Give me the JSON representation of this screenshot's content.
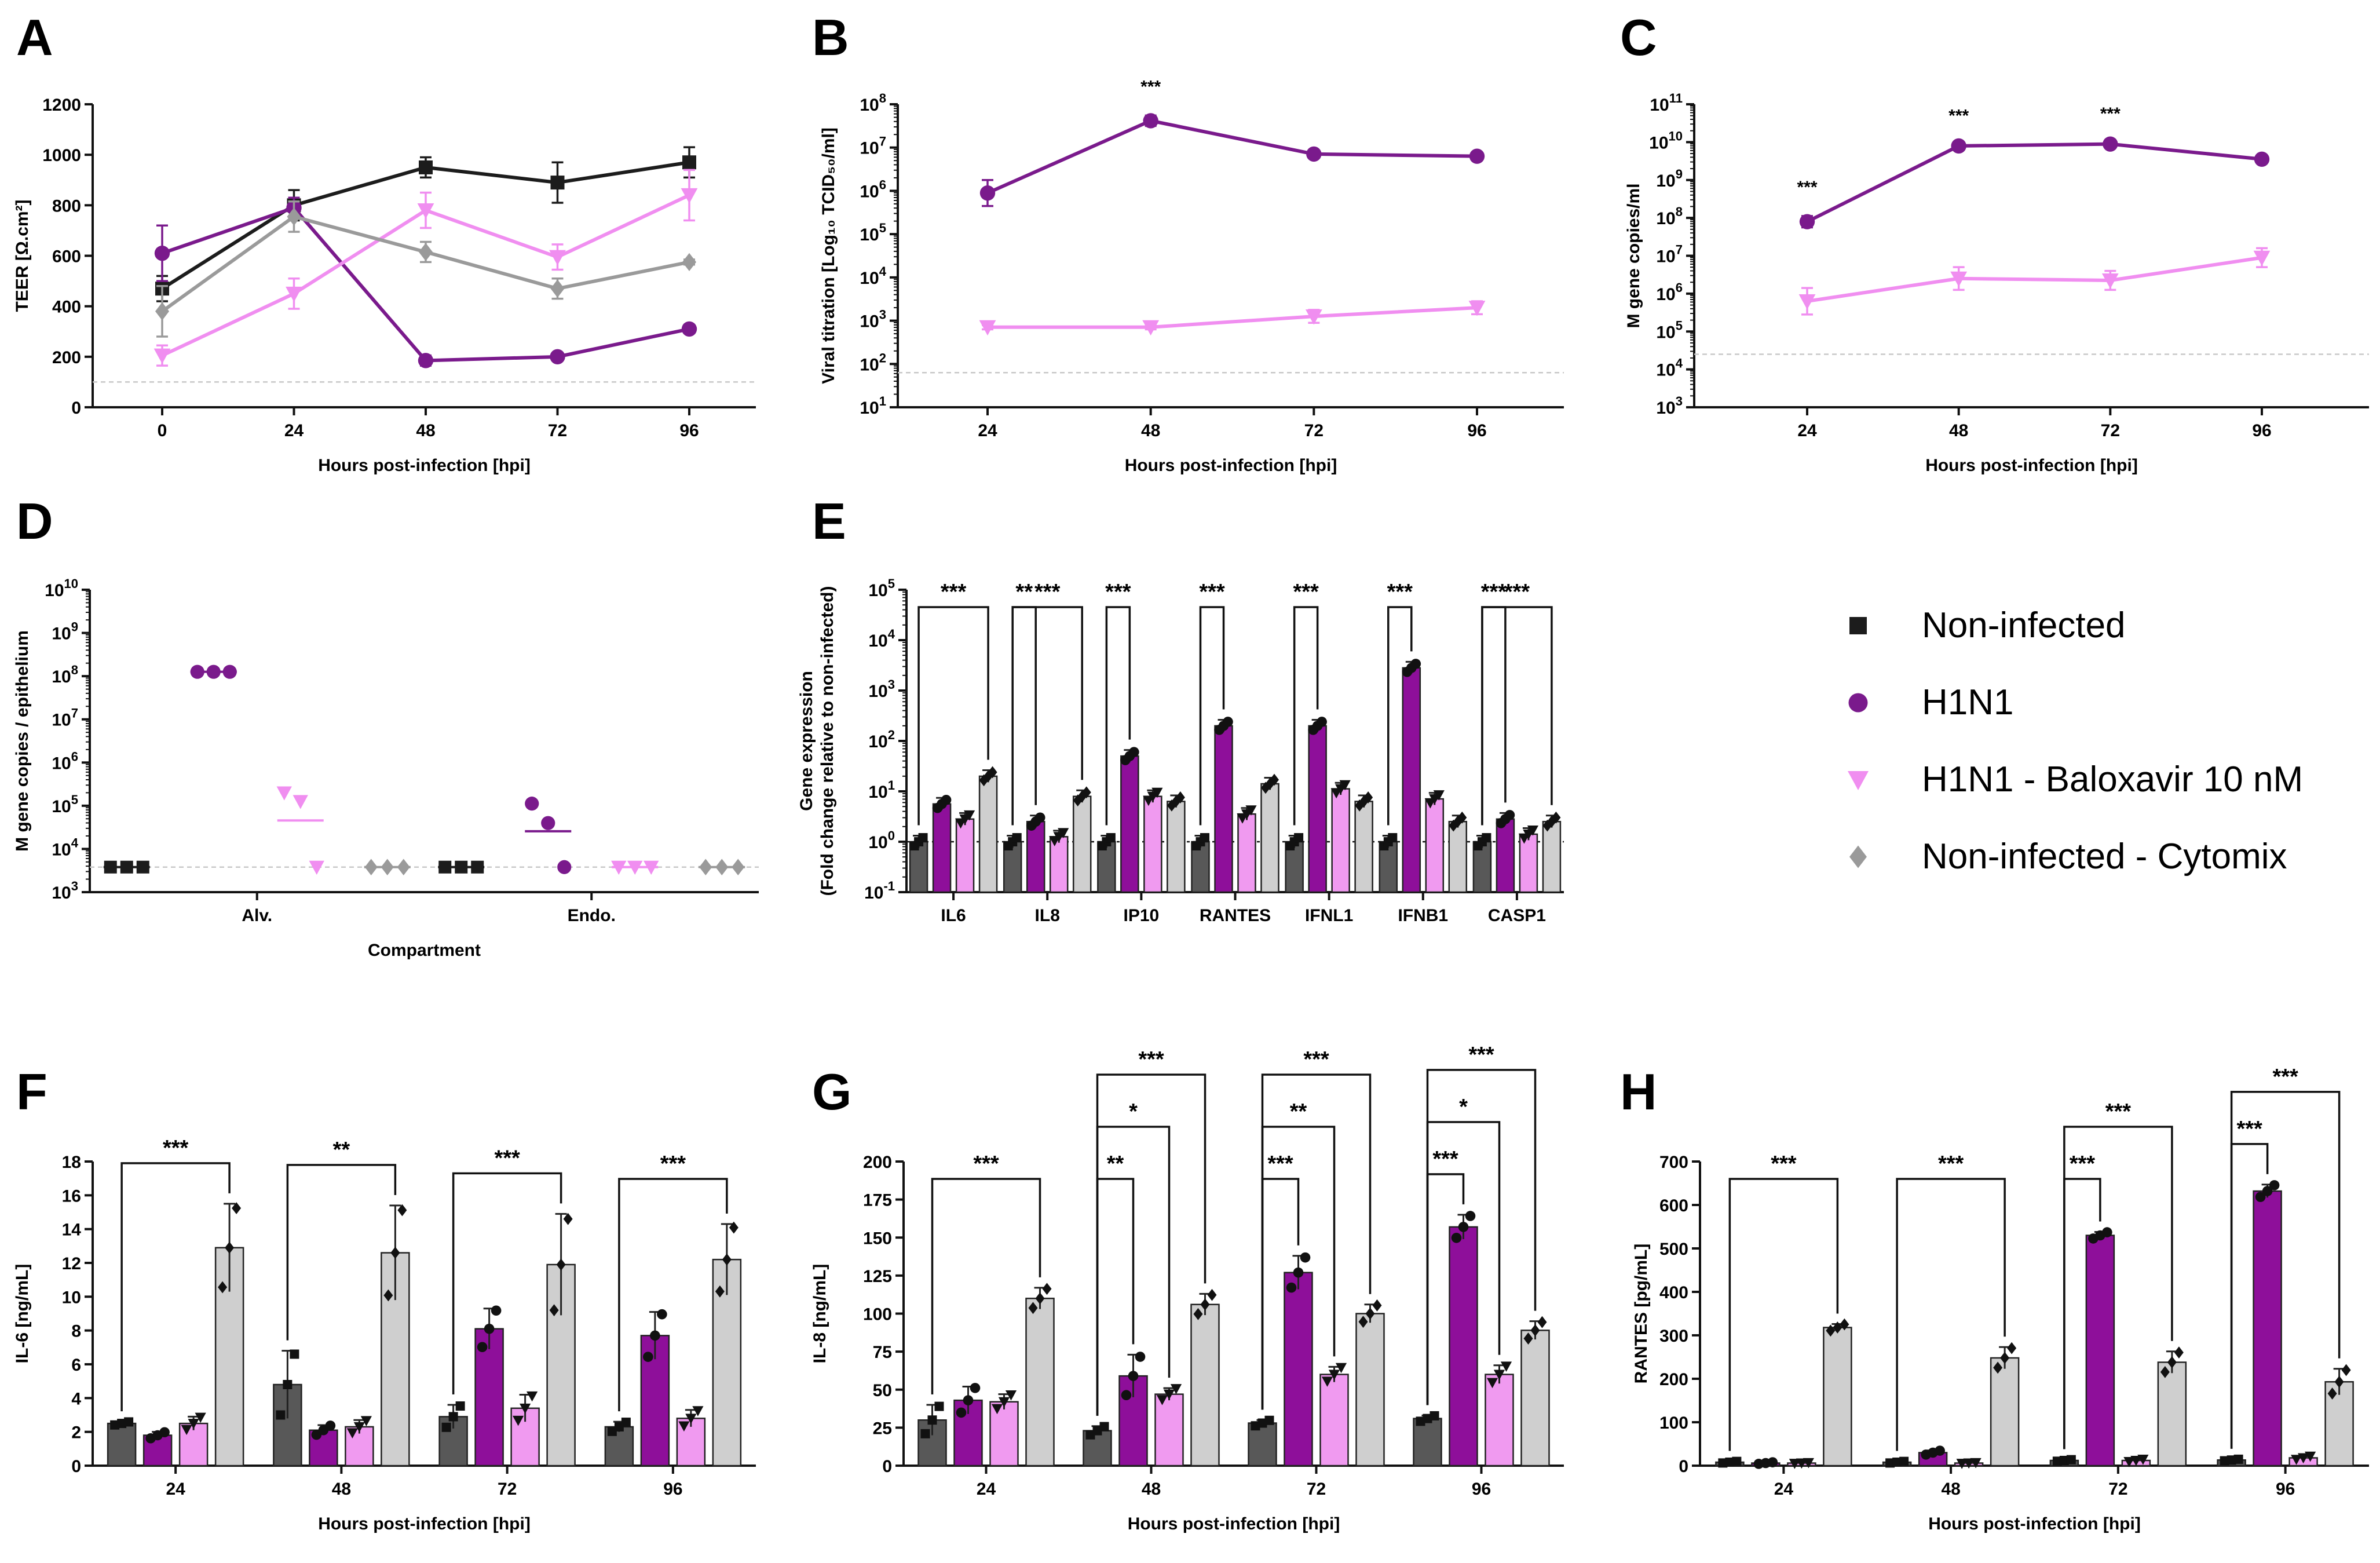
{
  "colors": {
    "noninf": "#1c1c1c",
    "h1n1": "#7a1a8c",
    "balox": "#f08ef0",
    "cytomix": "#9a9a9a",
    "bar_noninf": "#585858",
    "bar_h1n1": "#8e0f9a",
    "bar_balox": "#f09af0",
    "bar_cytomix": "#cfcfcf"
  },
  "legend": {
    "items": [
      {
        "label": "Non-infected",
        "marker": "square",
        "color": "#1c1c1c"
      },
      {
        "label": "H1N1",
        "marker": "circle",
        "color": "#7a1a8c"
      },
      {
        "label": "H1N1 - Baloxavir 10 nM",
        "marker": "triangle-down",
        "color": "#f08ef0"
      },
      {
        "label": "Non-infected - Cytomix",
        "marker": "diamond",
        "color": "#9a9a9a"
      }
    ]
  },
  "chart_data": [
    {
      "panel": "A",
      "type": "line",
      "x": [
        0,
        24,
        48,
        72,
        96
      ],
      "xticks": [
        "0",
        "24",
        "48",
        "72",
        "96"
      ],
      "xlabel": "Hours post-infection [hpi]",
      "ylabel": "TEER [Ω.cm²]",
      "ylim": [
        0,
        1200
      ],
      "yticks": [
        "0",
        "200",
        "400",
        "600",
        "800",
        "1000",
        "1200"
      ],
      "threshold": 100,
      "series": [
        {
          "name": "Non-infected",
          "values": [
            470,
            800,
            950,
            890,
            970
          ],
          "err": [
            50,
            60,
            40,
            80,
            60
          ]
        },
        {
          "name": "H1N1",
          "values": [
            610,
            790,
            185,
            200,
            310
          ],
          "err": [
            110,
            40,
            20,
            15,
            15
          ]
        },
        {
          "name": "H1N1 - Baloxavir 10 nM",
          "values": [
            205,
            450,
            780,
            595,
            840
          ],
          "err": [
            40,
            60,
            70,
            50,
            100
          ]
        },
        {
          "name": "Non-infected - Cytomix",
          "values": [
            380,
            755,
            615,
            470,
            575
          ],
          "err": [
            100,
            60,
            40,
            40,
            10
          ]
        }
      ]
    },
    {
      "panel": "B",
      "type": "line",
      "log": true,
      "x": [
        24,
        48,
        72,
        96
      ],
      "xticks": [
        "24",
        "48",
        "72",
        "96"
      ],
      "xlabel": "Hours post-infection [hpi]",
      "ylabel": "Viral titration [Log₁₀ TCID₅₀/ml]",
      "ylim_exp": [
        1,
        8
      ],
      "ytick_base": "10",
      "yticks_exp": [
        "1",
        "2",
        "3",
        "4",
        "5",
        "6",
        "7",
        "8"
      ],
      "threshold_exp": 1.8,
      "annotations": [
        {
          "x": 48,
          "text": "***"
        }
      ],
      "series": [
        {
          "name": "H1N1",
          "values_exp": [
            5.95,
            7.62,
            6.85,
            6.8
          ],
          "err": [
            0.3,
            0.12,
            0.06,
            0.06
          ]
        },
        {
          "name": "H1N1 - Baloxavir 10 nM",
          "values_exp": [
            2.85,
            2.85,
            3.1,
            3.3
          ],
          "err": [
            0.05,
            0.05,
            0.15,
            0.15
          ]
        }
      ]
    },
    {
      "panel": "C",
      "type": "line",
      "log": true,
      "x": [
        24,
        48,
        72,
        96
      ],
      "xticks": [
        "24",
        "48",
        "72",
        "96"
      ],
      "xlabel": "Hours post-infection [hpi]",
      "ylabel": "M gene copies/ml",
      "ylim_exp": [
        3,
        11
      ],
      "ytick_base": "10",
      "yticks_exp": [
        "3",
        "4",
        "5",
        "6",
        "7",
        "8",
        "9",
        "10",
        "11"
      ],
      "threshold_exp": 4.4,
      "annotations": [
        {
          "x": 24,
          "text": "***"
        },
        {
          "x": 48,
          "text": "***"
        },
        {
          "x": 72,
          "text": "***"
        }
      ],
      "series": [
        {
          "name": "H1N1",
          "values_exp": [
            7.9,
            9.9,
            9.95,
            9.55
          ],
          "err": [
            0.15,
            0.04,
            0.04,
            0.06
          ]
        },
        {
          "name": "H1N1 - Baloxavir 10 nM",
          "values_exp": [
            5.8,
            6.4,
            6.35,
            6.95
          ],
          "err": [
            0.35,
            0.3,
            0.25,
            0.25
          ]
        }
      ]
    },
    {
      "panel": "D",
      "type": "scatter",
      "log": true,
      "categories": [
        "Alv.",
        "Endo."
      ],
      "xlabel": "Compartment",
      "ylabel": "M gene copies / epithelium",
      "ylim_exp": [
        3,
        10
      ],
      "ytick_base": "10",
      "yticks_exp": [
        "3",
        "4",
        "5",
        "6",
        "7",
        "8",
        "9",
        "10"
      ],
      "threshold_exp": 3.58,
      "series": [
        {
          "name": "Non-infected",
          "points_exp": [
            [
              3.58,
              3.58,
              3.58
            ],
            [
              3.58,
              3.58,
              3.58
            ]
          ]
        },
        {
          "name": "H1N1",
          "points_exp": [
            [
              8.1,
              8.1,
              8.1
            ],
            [
              5.05,
              4.6,
              3.58
            ]
          ]
        },
        {
          "name": "H1N1 - Baloxavir 10 nM",
          "points_exp": [
            [
              5.3,
              5.1,
              3.58
            ],
            [
              3.58,
              3.58,
              3.58
            ]
          ]
        },
        {
          "name": "Non-infected - Cytomix",
          "points_exp": [
            [
              3.58,
              3.58,
              3.58
            ],
            [
              3.58,
              3.58,
              3.58
            ]
          ]
        }
      ]
    },
    {
      "panel": "E",
      "type": "bar",
      "log": true,
      "categories": [
        "IL6",
        "IL8",
        "IP10",
        "RANTES",
        "IFNL1",
        "IFNB1",
        "CASP1"
      ],
      "ylabel": "Gene expression",
      "ylabel2": "(Fold change relative to non-infected)",
      "ylim_exp": [
        -1,
        5
      ],
      "ytick_base": "10",
      "yticks_exp": [
        "-1",
        "0",
        "1",
        "2",
        "3",
        "4",
        "5"
      ],
      "threshold_exp": 0,
      "series": [
        {
          "name": "Non-infected",
          "values_exp": [
            0,
            0,
            0,
            0,
            0,
            0,
            0
          ]
        },
        {
          "name": "H1N1",
          "values_exp": [
            0.75,
            0.4,
            1.7,
            2.3,
            2.3,
            3.45,
            0.45
          ]
        },
        {
          "name": "H1N1 - Baloxavir 10 nM",
          "values_exp": [
            0.45,
            0.1,
            0.9,
            0.55,
            1.05,
            0.85,
            0.15
          ]
        },
        {
          "name": "Non-infected - Cytomix",
          "values_exp": [
            1.3,
            0.9,
            0.8,
            1.15,
            0.8,
            0.4,
            0.4
          ]
        }
      ],
      "brackets": [
        {
          "cat": 0,
          "from": 0,
          "to": 3,
          "level": 0,
          "text": "***"
        },
        {
          "cat": 1,
          "from": 0,
          "to": 1,
          "level": 0,
          "text": "**"
        },
        {
          "cat": 1,
          "from": 0,
          "to": 3,
          "level": 1,
          "text": "***"
        },
        {
          "cat": 2,
          "from": 0,
          "to": 1,
          "level": 0,
          "text": "***"
        },
        {
          "cat": 3,
          "from": 0,
          "to": 1,
          "level": 0,
          "text": "***"
        },
        {
          "cat": 4,
          "from": 0,
          "to": 1,
          "level": 0,
          "text": "***"
        },
        {
          "cat": 5,
          "from": 0,
          "to": 1,
          "level": 0,
          "text": "***"
        },
        {
          "cat": 6,
          "from": 0,
          "to": 1,
          "level": 0,
          "text": "***"
        },
        {
          "cat": 6,
          "from": 0,
          "to": 3,
          "level": 1,
          "text": "***"
        }
      ]
    },
    {
      "panel": "F",
      "type": "bar",
      "categories": [
        "24",
        "48",
        "72",
        "96"
      ],
      "xlabel": "Hours post-infection [hpi]",
      "ylabel": "IL-6 [ng/mL]",
      "ylim": [
        0,
        18
      ],
      "yticks": [
        "0",
        "2",
        "4",
        "6",
        "8",
        "10",
        "12",
        "14",
        "16",
        "18"
      ],
      "series": [
        {
          "name": "Non-infected",
          "values": [
            2.5,
            4.8,
            2.9,
            2.3
          ],
          "err": [
            0.1,
            2.0,
            0.7,
            0.3
          ]
        },
        {
          "name": "H1N1",
          "values": [
            1.8,
            2.1,
            8.1,
            7.7
          ],
          "err": [
            0.2,
            0.3,
            1.2,
            1.4
          ]
        },
        {
          "name": "H1N1 - Baloxavir 10 nM",
          "values": [
            2.5,
            2.3,
            3.4,
            2.8
          ],
          "err": [
            0.4,
            0.4,
            0.8,
            0.5
          ]
        },
        {
          "name": "Non-infected - Cytomix",
          "values": [
            12.9,
            12.6,
            11.9,
            12.2
          ],
          "err": [
            2.6,
            2.8,
            3.0,
            2.1
          ]
        }
      ],
      "brackets": [
        {
          "cat": 0,
          "from": 0,
          "to": 3,
          "level": 0,
          "text": "***"
        },
        {
          "cat": 1,
          "from": 0,
          "to": 3,
          "level": 0,
          "text": "**"
        },
        {
          "cat": 2,
          "from": 0,
          "to": 3,
          "level": 0,
          "text": "***"
        },
        {
          "cat": 3,
          "from": 0,
          "to": 3,
          "level": 0,
          "text": "***"
        }
      ]
    },
    {
      "panel": "G",
      "type": "bar",
      "categories": [
        "24",
        "48",
        "72",
        "96"
      ],
      "xlabel": "Hours post-infection [hpi]",
      "ylabel": "IL-8 [ng/mL]",
      "ylim": [
        0,
        200
      ],
      "yticks": [
        "0",
        "25",
        "50",
        "75",
        "100",
        "125",
        "150",
        "175",
        "200"
      ],
      "series": [
        {
          "name": "Non-infected",
          "values": [
            30,
            23,
            28,
            31
          ],
          "err": [
            10,
            3,
            2,
            2
          ]
        },
        {
          "name": "H1N1",
          "values": [
            43,
            59,
            127,
            157
          ],
          "err": [
            9,
            14,
            11,
            8
          ]
        },
        {
          "name": "H1N1 - Baloxavir 10 nM",
          "values": [
            42,
            47,
            60,
            60
          ],
          "err": [
            5,
            4,
            5,
            6
          ]
        },
        {
          "name": "Non-infected - Cytomix",
          "values": [
            110,
            106,
            100,
            89
          ],
          "err": [
            7,
            7,
            6,
            6
          ]
        }
      ],
      "brackets": [
        {
          "cat": 0,
          "from": 0,
          "to": 3,
          "level": 0,
          "text": "***"
        },
        {
          "cat": 1,
          "from": 0,
          "to": 1,
          "level": 0,
          "text": "**"
        },
        {
          "cat": 1,
          "from": 0,
          "to": 2,
          "level": 1,
          "text": "*"
        },
        {
          "cat": 1,
          "from": 0,
          "to": 3,
          "level": 2,
          "text": "***"
        },
        {
          "cat": 2,
          "from": 0,
          "to": 1,
          "level": 0,
          "text": "***"
        },
        {
          "cat": 2,
          "from": 0,
          "to": 2,
          "level": 1,
          "text": "**"
        },
        {
          "cat": 2,
          "from": 0,
          "to": 3,
          "level": 2,
          "text": "***"
        },
        {
          "cat": 3,
          "from": 0,
          "to": 1,
          "level": 0,
          "text": "***"
        },
        {
          "cat": 3,
          "from": 0,
          "to": 2,
          "level": 1,
          "text": "*"
        },
        {
          "cat": 3,
          "from": 0,
          "to": 3,
          "level": 2,
          "text": "***"
        }
      ]
    },
    {
      "panel": "H",
      "type": "bar",
      "categories": [
        "24",
        "48",
        "72",
        "96"
      ],
      "xlabel": "Hours post-infection [hpi]",
      "ylabel": "RANTES [pg/mL]",
      "ylim": [
        0,
        700
      ],
      "yticks": [
        "0",
        "100",
        "200",
        "300",
        "400",
        "500",
        "600",
        "700"
      ],
      "series": [
        {
          "name": "Non-infected",
          "values": [
            8,
            8,
            12,
            13
          ],
          "err": [
            2,
            2,
            2,
            2
          ]
        },
        {
          "name": "H1N1",
          "values": [
            6,
            30,
            530,
            632
          ],
          "err": [
            2,
            5,
            8,
            15
          ]
        },
        {
          "name": "H1N1 - Baloxavir 10 nM",
          "values": [
            6,
            6,
            12,
            18
          ],
          "err": [
            1,
            1,
            3,
            4
          ]
        },
        {
          "name": "Non-infected - Cytomix",
          "values": [
            318,
            248,
            238,
            193
          ],
          "err": [
            8,
            25,
            25,
            30
          ]
        }
      ],
      "brackets": [
        {
          "cat": 0,
          "from": 0,
          "to": 3,
          "level": 0,
          "text": "***"
        },
        {
          "cat": 1,
          "from": 0,
          "to": 3,
          "level": 0,
          "text": "***"
        },
        {
          "cat": 2,
          "from": 0,
          "to": 1,
          "level": 0,
          "text": "***"
        },
        {
          "cat": 2,
          "from": 0,
          "to": 3,
          "level": 1,
          "text": "***"
        },
        {
          "cat": 3,
          "from": 0,
          "to": 1,
          "level": 0,
          "text": "***"
        },
        {
          "cat": 3,
          "from": 0,
          "to": 3,
          "level": 1,
          "text": "***"
        }
      ]
    }
  ]
}
